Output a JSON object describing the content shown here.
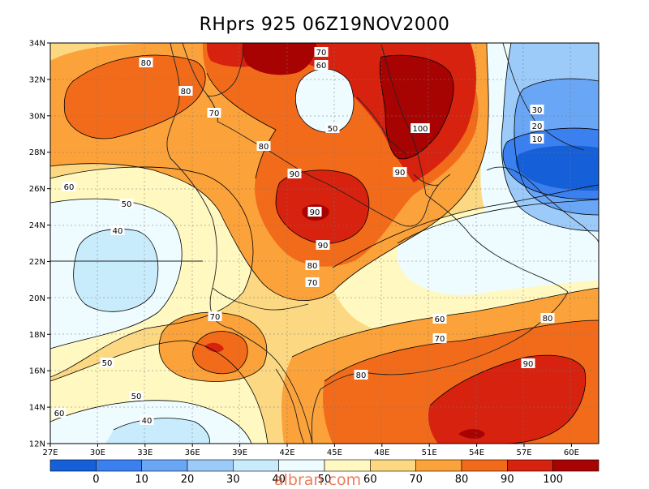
{
  "title": "RHprs 925 06Z19NOV2000",
  "lat_labels": [
    "34N",
    "32N",
    "30N",
    "28N",
    "26N",
    "24N",
    "22N",
    "20N",
    "18N",
    "16N",
    "14N",
    "12N"
  ],
  "lon_labels": [
    "27E",
    "30E",
    "33E",
    "36E",
    "39E",
    "42E",
    "45E",
    "48E",
    "51E",
    "54E",
    "57E",
    "60E"
  ],
  "colorbar": {
    "labels": [
      "0",
      "10",
      "20",
      "30",
      "40",
      "50",
      "60",
      "70",
      "80",
      "90",
      "100"
    ],
    "colors": [
      "#1560d8",
      "#3a80f0",
      "#6aa6f6",
      "#9ccbfa",
      "#c9ecfd",
      "#eefcff",
      "#fff8c0",
      "#fcd882",
      "#fba23a",
      "#f26b1a",
      "#d6220e",
      "#a80303"
    ]
  },
  "contour_labels": [
    {
      "text": "80",
      "name": "nw-80"
    },
    {
      "text": "80",
      "name": "nw-80b"
    },
    {
      "text": "70",
      "name": "sinai-70"
    },
    {
      "text": "90",
      "name": "levant-90"
    },
    {
      "text": "70",
      "name": "iraq-70"
    },
    {
      "text": "60",
      "name": "iraq-60"
    },
    {
      "text": "50",
      "name": "iraq-50"
    },
    {
      "text": "100",
      "name": "gulf-100"
    },
    {
      "text": "90",
      "name": "gulf-90"
    },
    {
      "text": "80",
      "name": "saudi-80"
    },
    {
      "text": "90",
      "name": "saudi-90"
    },
    {
      "text": "90",
      "name": "saudi-90b"
    },
    {
      "text": "80",
      "name": "saudi-80b"
    },
    {
      "text": "70",
      "name": "saudi-70"
    },
    {
      "text": "60",
      "name": "west-60"
    },
    {
      "text": "50",
      "name": "west-50"
    },
    {
      "text": "40",
      "name": "west-40"
    },
    {
      "text": "30",
      "name": "iran-30"
    },
    {
      "text": "20",
      "name": "iran-20"
    },
    {
      "text": "10",
      "name": "iran-10"
    },
    {
      "text": "70",
      "name": "sudan-70"
    },
    {
      "text": "50",
      "name": "sudan-50"
    },
    {
      "text": "50",
      "name": "south-50"
    },
    {
      "text": "40",
      "name": "south-40"
    },
    {
      "text": "60",
      "name": "sw-60"
    },
    {
      "text": "60",
      "name": "oman-60"
    },
    {
      "text": "70",
      "name": "oman-70"
    },
    {
      "text": "80",
      "name": "yemen-80"
    },
    {
      "text": "80",
      "name": "arabsea-80"
    },
    {
      "text": "90",
      "name": "arabsea-90"
    }
  ],
  "watermark": "albran.com"
}
